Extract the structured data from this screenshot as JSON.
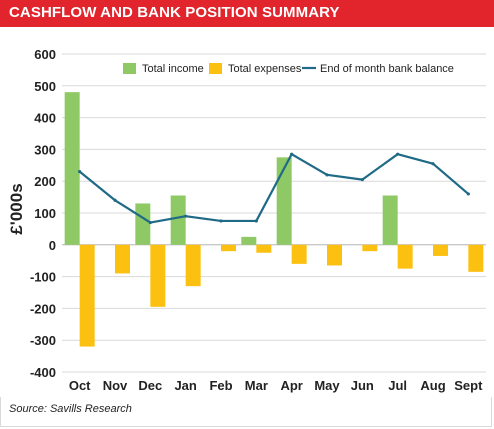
{
  "header": {
    "title": "CASHFLOW AND BANK POSITION SUMMARY"
  },
  "footer": {
    "source": "Source: Savills Research"
  },
  "colors": {
    "title_bar": "#e2242c",
    "income": "#8fc966",
    "expenses": "#fcc010",
    "balance": "#1f6a86"
  },
  "chart_data": {
    "type": "bar",
    "title": "CASHFLOW AND BANK POSITION SUMMARY",
    "xlabel": "",
    "ylabel": "£'000s",
    "ylim": [
      -400,
      600
    ],
    "yticks": [
      600,
      500,
      400,
      300,
      200,
      100,
      0,
      -100,
      -200,
      -300,
      -400
    ],
    "grid": "horizontal",
    "legend": "top",
    "categories": [
      "Oct",
      "Nov",
      "Dec",
      "Jan",
      "Feb",
      "Mar",
      "Apr",
      "May",
      "Jun",
      "Jul",
      "Aug",
      "Sept"
    ],
    "series": [
      {
        "name": "Total income",
        "kind": "bar",
        "color": "#8fc966",
        "values": [
          480,
          0,
          130,
          155,
          0,
          25,
          275,
          0,
          0,
          155,
          0,
          0
        ]
      },
      {
        "name": "Total expenses",
        "kind": "bar",
        "color": "#fcc010",
        "values": [
          -320,
          -90,
          -195,
          -130,
          -20,
          -25,
          -60,
          -65,
          -20,
          -75,
          -35,
          -85
        ]
      },
      {
        "name": "End of month bank balance",
        "kind": "line",
        "color": "#1f6a86",
        "values": [
          230,
          140,
          70,
          90,
          75,
          75,
          285,
          220,
          205,
          285,
          255,
          160
        ]
      }
    ]
  }
}
